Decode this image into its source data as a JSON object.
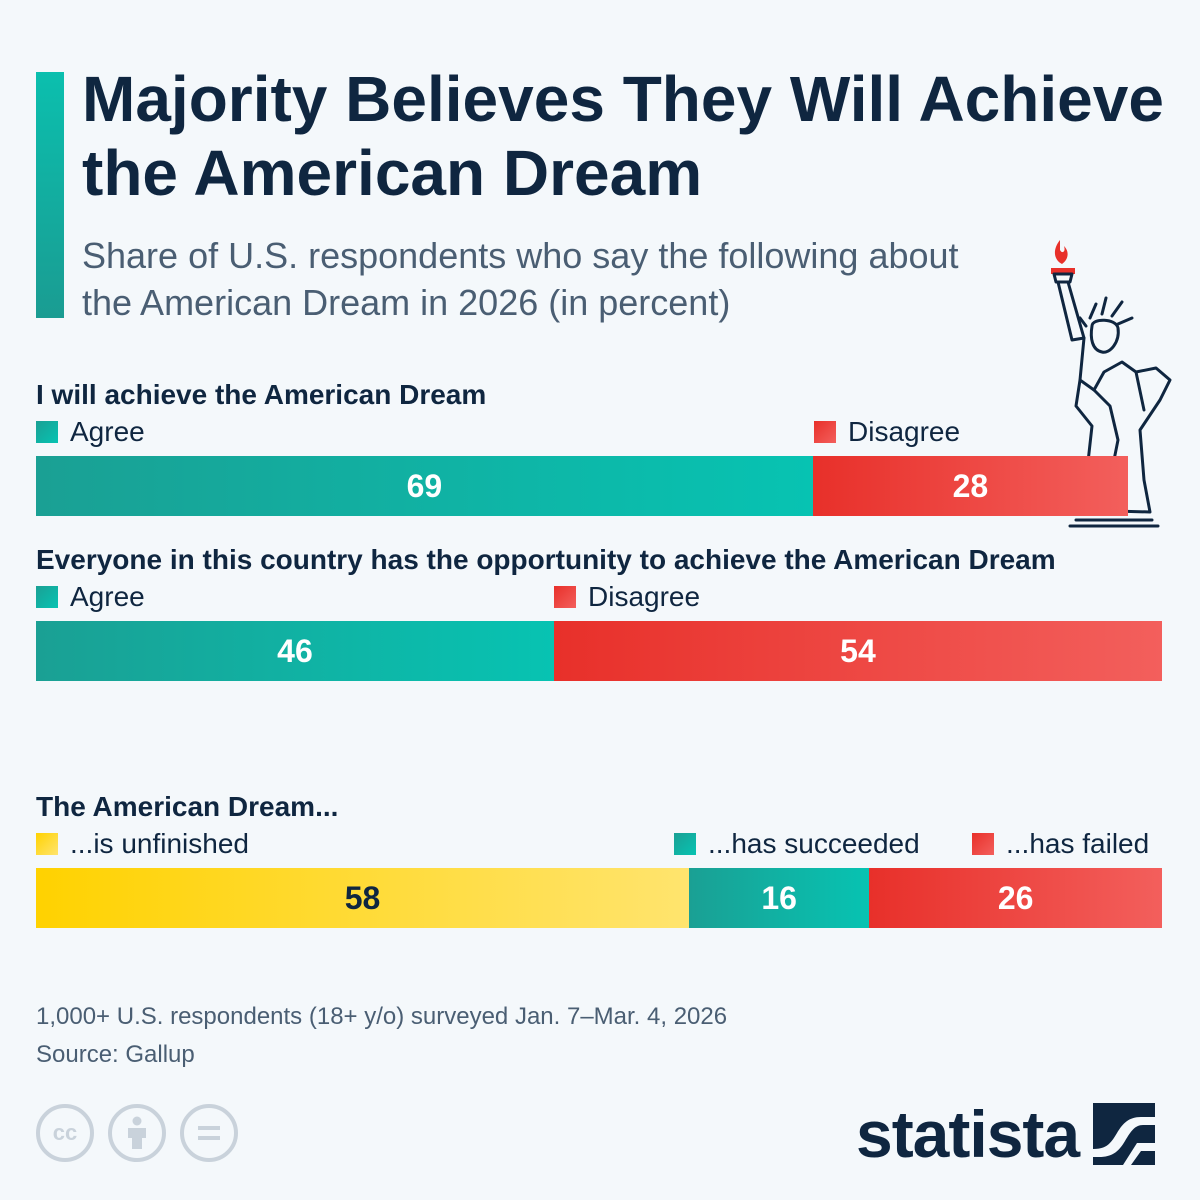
{
  "header": {
    "title": "Majority Believes They Will Achieve the American Dream",
    "subtitle": "Share of U.S. respondents who say the following about the American Dream in 2026 (in percent)"
  },
  "colors": {
    "agree": "#07c3b2",
    "disagree": "#e8302a",
    "unfinished": "#ffd200",
    "title": "#0f2640"
  },
  "chart_data": [
    {
      "type": "bar",
      "orientation": "horizontal-stacked",
      "title": "I will achieve the American Dream",
      "categories": [
        "Agree",
        "Disagree"
      ],
      "values": [
        69,
        28
      ],
      "value_labels": [
        "69",
        "28"
      ],
      "legend": [
        "Agree",
        "Disagree"
      ]
    },
    {
      "type": "bar",
      "orientation": "horizontal-stacked",
      "title": "Everyone in this country has the opportunity to achieve the American Dream",
      "categories": [
        "Agree",
        "Disagree"
      ],
      "values": [
        46,
        54
      ],
      "value_labels": [
        "46",
        "54"
      ],
      "legend": [
        "Agree",
        "Disagree"
      ]
    },
    {
      "type": "bar",
      "orientation": "horizontal-stacked",
      "title": "The American Dream...",
      "categories": [
        "...is unfinished",
        "...has succeeded",
        "...has failed"
      ],
      "values": [
        58,
        16,
        26
      ],
      "value_labels": [
        "58",
        "16",
        "26"
      ],
      "legend": [
        "...is unfinished",
        "...has succeeded",
        "...has failed"
      ]
    }
  ],
  "footer": {
    "note": "1,000+ U.S. respondents (18+ y/o) surveyed Jan. 7–Mar. 4, 2026",
    "source": "Source: Gallup",
    "brand": "statista",
    "cc_icons": [
      "cc-icon",
      "by-icon",
      "nd-icon"
    ]
  }
}
